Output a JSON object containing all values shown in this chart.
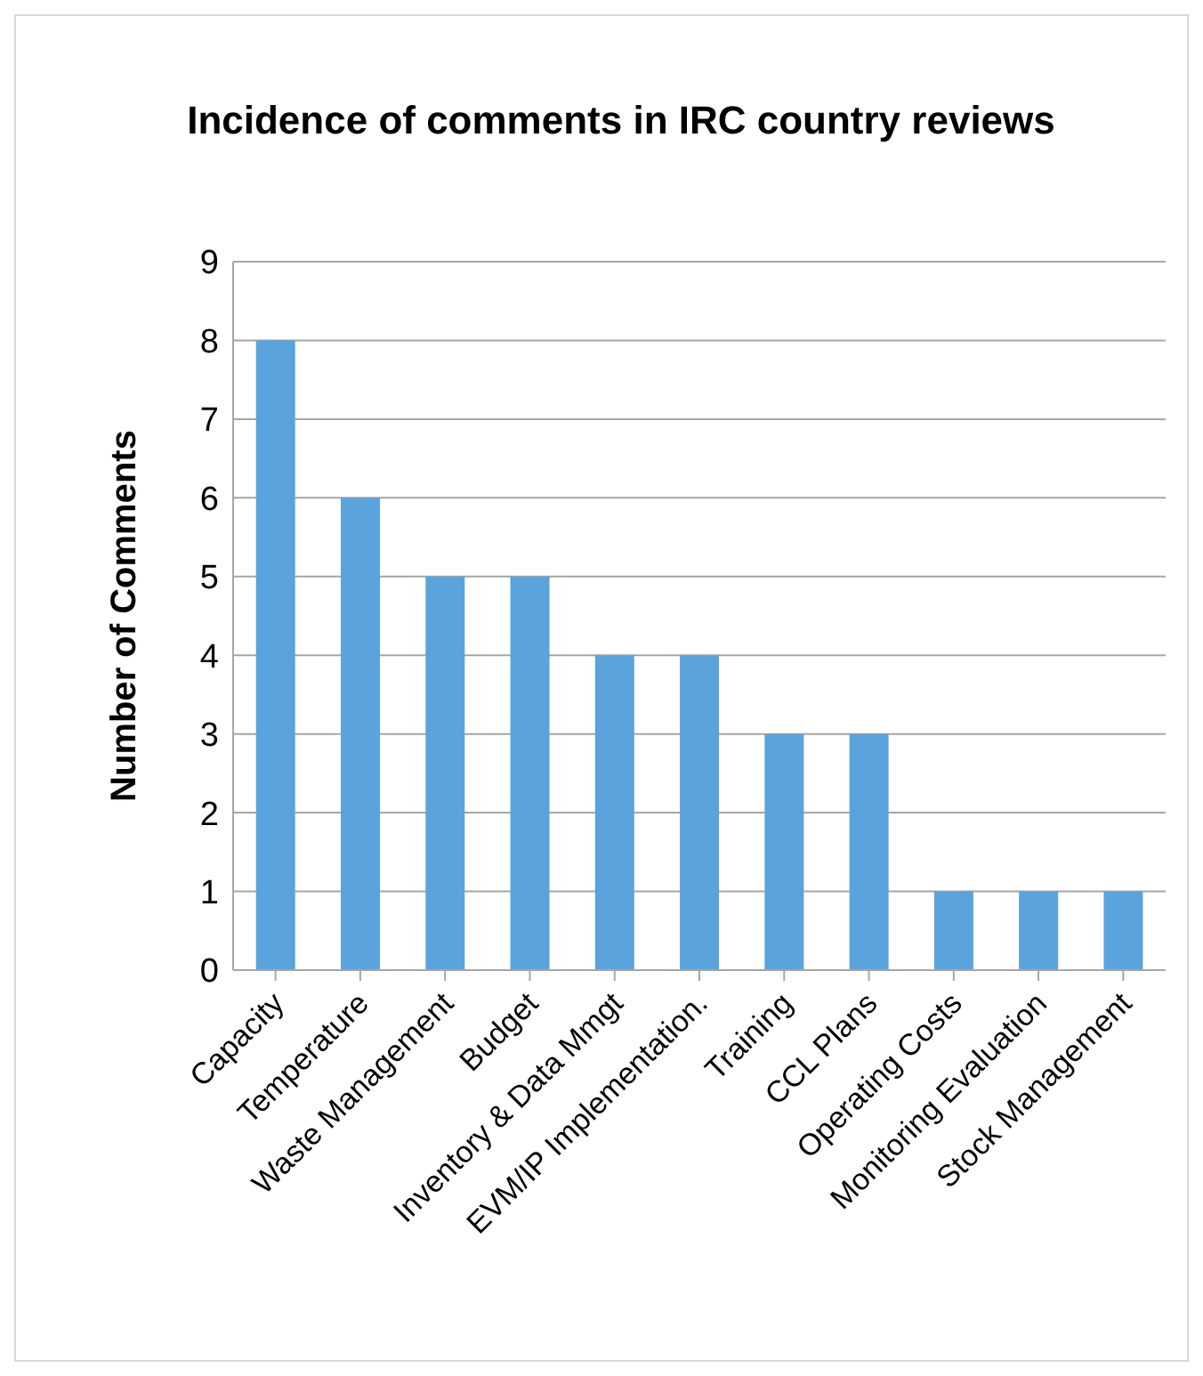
{
  "chart_data": {
    "type": "bar",
    "title": "Incidence of comments in IRC country reviews",
    "ylabel": "Number of Comments",
    "categories": [
      "Capacity",
      "Temperature",
      "Waste Management",
      "Budget",
      "Inventory & Data Mmgt",
      "EVM/IP Implementation.",
      "Training",
      "CCL Plans",
      "Operating Costs",
      "Monitoring Evaluation",
      "Stock Management"
    ],
    "values": [
      8,
      6,
      5,
      5,
      4,
      4,
      3,
      3,
      1,
      1,
      1
    ],
    "color": "#5ba3dc",
    "ylim": [
      0,
      9
    ],
    "yticks": [
      0,
      1,
      2,
      3,
      4,
      5,
      6,
      7,
      8,
      9
    ],
    "grid": "y",
    "legend": false
  }
}
